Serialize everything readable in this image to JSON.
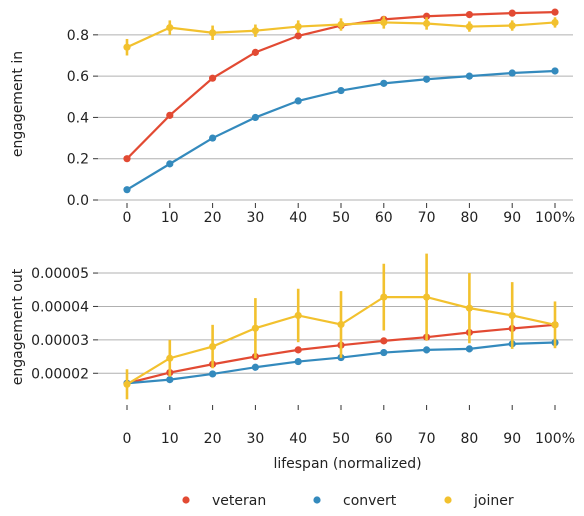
{
  "chart_data": [
    {
      "type": "line",
      "ylabel": "engagement in",
      "xlabel": "",
      "categories": [
        "0",
        "10",
        "20",
        "30",
        "40",
        "50",
        "60",
        "70",
        "80",
        "90",
        "100%"
      ],
      "y_ticks": [
        "0.0",
        "0.2",
        "0.4",
        "0.6",
        "0.8"
      ],
      "ylim": [
        0.0,
        0.93
      ],
      "grid": "horizontal",
      "series": [
        {
          "name": "veteran",
          "color": "#e24a33",
          "values": [
            0.2,
            0.41,
            0.59,
            0.715,
            0.795,
            0.845,
            0.875,
            0.89,
            0.898,
            0.905,
            0.91
          ],
          "errors": [
            0.01,
            0.012,
            0.012,
            0.01,
            0.01,
            0.01,
            0.01,
            0.008,
            0.008,
            0.008,
            0.008
          ]
        },
        {
          "name": "convert",
          "color": "#348abd",
          "values": [
            0.05,
            0.175,
            0.3,
            0.4,
            0.48,
            0.53,
            0.565,
            0.585,
            0.6,
            0.615,
            0.625
          ],
          "errors": [
            0.01,
            0.015,
            0.015,
            0.015,
            0.015,
            0.015,
            0.015,
            0.015,
            0.015,
            0.015,
            0.015
          ]
        },
        {
          "name": "joiner",
          "color": "#f2c12e",
          "values": [
            0.74,
            0.835,
            0.81,
            0.82,
            0.84,
            0.85,
            0.86,
            0.855,
            0.84,
            0.845,
            0.86
          ],
          "errors": [
            0.04,
            0.035,
            0.035,
            0.03,
            0.03,
            0.03,
            0.03,
            0.03,
            0.025,
            0.025,
            0.025
          ]
        }
      ]
    },
    {
      "type": "line",
      "ylabel": "engagement out",
      "xlabel": "lifespan (normalized)",
      "categories": [
        "0",
        "10",
        "20",
        "30",
        "40",
        "50",
        "60",
        "70",
        "80",
        "90",
        "100%"
      ],
      "y_ticks": [
        "0.00002",
        "0.00003",
        "0.00004",
        "0.00005"
      ],
      "ylim": [
        1.14e-05,
        5.63e-05
      ],
      "grid": "horizontal",
      "series": [
        {
          "name": "veteran",
          "color": "#e24a33",
          "values": [
            1.7e-05,
            2.02e-05,
            2.27e-05,
            2.5e-05,
            2.7e-05,
            2.84e-05,
            2.97e-05,
            3.08e-05,
            3.22e-05,
            3.34e-05,
            3.45e-05
          ],
          "errors": [
            5e-07,
            6e-07,
            6e-07,
            6e-07,
            6e-07,
            6e-07,
            7e-07,
            7e-07,
            8e-07,
            8e-07,
            8e-07
          ]
        },
        {
          "name": "convert",
          "color": "#348abd",
          "values": [
            1.7e-05,
            1.81e-05,
            1.98e-05,
            2.18e-05,
            2.35e-05,
            2.47e-05,
            2.62e-05,
            2.7e-05,
            2.73e-05,
            2.88e-05,
            2.92e-05
          ],
          "errors": [
            5e-07,
            7e-07,
            8e-07,
            8e-07,
            9e-07,
            9e-07,
            1e-06,
            1e-06,
            1e-06,
            1e-06,
            1.2e-06
          ]
        },
        {
          "name": "joiner",
          "color": "#f2c12e",
          "values": [
            1.67e-05,
            2.45e-05,
            2.8e-05,
            3.35e-05,
            3.73e-05,
            3.46e-05,
            4.28e-05,
            4.28e-05,
            3.95e-05,
            3.73e-05,
            3.45e-05
          ],
          "errors": [
            4.5e-06,
            5.5e-06,
            6.5e-06,
            9e-06,
            8e-06,
            1e-05,
            1e-05,
            1.3e-05,
            1.05e-05,
            1e-05,
            7e-06
          ]
        }
      ]
    }
  ],
  "legend": {
    "placement": "bottom",
    "items": [
      {
        "label": "veteran",
        "color": "#e24a33"
      },
      {
        "label": "convert",
        "color": "#348abd"
      },
      {
        "label": "joiner",
        "color": "#f2c12e"
      }
    ]
  }
}
